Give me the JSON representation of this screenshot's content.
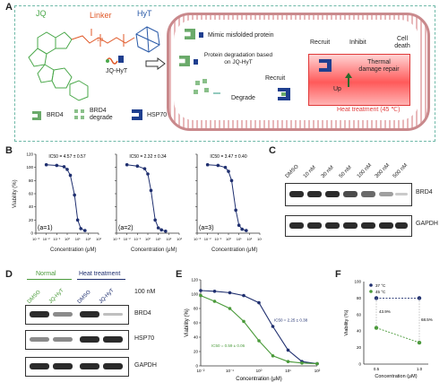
{
  "panel_labels": {
    "a": "A",
    "b": "B",
    "c": "C",
    "d": "D",
    "e": "E",
    "f": "F"
  },
  "panel_a": {
    "jq": "JQ",
    "linker": "Linker",
    "hyt": "HyT",
    "linker_repeat": "1-3",
    "jq_hyt": "JQ-HyT",
    "legend": {
      "brd4": "BRD4",
      "brd4_degrade": "BRD4 degrade",
      "hsp70": "HSP70"
    },
    "mimic": "Mimic misfolded protein",
    "protein_degradation": "Protein degradation based on JQ-HyT",
    "recruit_left": "Recruit",
    "degrade": "Degrade",
    "recruit_right": "Recruit",
    "inhibit": "Inhibit",
    "cell_death": "Cell death",
    "thermal": "Thermal damage repair",
    "up": "Up",
    "heat": "Heat treatment (45 ℃)",
    "colors": {
      "brd4": "#6aaa6a",
      "hsp70": "#1f3f8f",
      "heat": "#e03a3a",
      "cell": "#c9898c",
      "linker": "#e05a2a",
      "jq": "#4aa84a",
      "hyt": "#2a5aa8"
    }
  },
  "panel_b": {
    "ylabel": "Viability (%)",
    "xlabel": "Concentration (μM)",
    "xticks": [
      "10⁻³",
      "10⁻²",
      "10⁻¹",
      "10⁰",
      "10¹",
      "10²",
      "10³"
    ],
    "yticks": [
      "0",
      "20",
      "40",
      "60",
      "80",
      "100",
      "120"
    ],
    "plots": [
      {
        "ic50": "IC50 = 4.57 ± 0.57",
        "tag": "(a=1)"
      },
      {
        "ic50": "IC50 = 2.32 ± 0.34",
        "tag": "(a=2)"
      },
      {
        "ic50": "IC50 = 3.47 ± 0.40",
        "tag": "(a=3)"
      }
    ]
  },
  "panel_c": {
    "lanes": [
      "DMSO",
      "10 nM",
      "30 nM",
      "50 nM",
      "100 nM",
      "300 nM",
      "500 nM"
    ],
    "rows": [
      "BRD4",
      "GAPDH"
    ]
  },
  "panel_d": {
    "normal": "Normal",
    "heat": "Heat treatment",
    "lanes": [
      "DMSO",
      "JQ-HyT",
      "DMSO",
      "JQ-HyT"
    ],
    "dose": "100 nM",
    "rows": [
      "BRD4",
      "HSP70",
      "GAPDH"
    ]
  },
  "chart_data": [
    {
      "type": "line",
      "ylabel": "Viability (%)",
      "xlabel": "Concentration (μM)",
      "ylim": [
        0,
        120
      ],
      "series": [
        {
          "name": "IC50 = 4.57 ± 0.57",
          "x": [
            0.01,
            0.1,
            0.5,
            1,
            2,
            5,
            10,
            20,
            50
          ],
          "y": [
            104,
            103,
            101,
            97,
            88,
            58,
            20,
            7,
            4
          ]
        }
      ]
    },
    {
      "type": "line",
      "ylabel": "Viability (%)",
      "xlabel": "Concentration (μM)",
      "ylim": [
        0,
        120
      ],
      "series": [
        {
          "name": "IC50 = 2.32 ± 0.34",
          "x": [
            0.01,
            0.1,
            0.5,
            1,
            2,
            5,
            10,
            20,
            50
          ],
          "y": [
            104,
            102,
            98,
            90,
            65,
            20,
            8,
            5,
            3
          ]
        }
      ]
    },
    {
      "type": "line",
      "ylabel": "Viability (%)",
      "xlabel": "Concentration (μM)",
      "ylim": [
        0,
        120
      ],
      "series": [
        {
          "name": "IC50 = 3.47 ± 0.40",
          "x": [
            0.01,
            0.1,
            0.5,
            1,
            2,
            5,
            10,
            20,
            50
          ],
          "y": [
            104,
            103,
            100,
            94,
            80,
            35,
            12,
            6,
            4
          ]
        }
      ]
    },
    {
      "type": "line",
      "ylabel": "Viability (%)",
      "xlabel": "Concentration (μM)",
      "ylim": [
        0,
        120
      ],
      "series": [
        {
          "name": "IC50 = 2.25 ± 0.38",
          "color": "#1f2f6f",
          "x": [
            0.01,
            0.03,
            0.1,
            0.3,
            1,
            3,
            10,
            30,
            100
          ],
          "y": [
            105,
            104,
            102,
            98,
            88,
            55,
            22,
            6,
            3
          ]
        },
        {
          "name": "IC50 = 0.59 ± 0.06",
          "color": "#4a9a3a",
          "x": [
            0.01,
            0.03,
            0.1,
            0.3,
            1,
            3,
            10,
            30,
            100
          ],
          "y": [
            98,
            90,
            80,
            62,
            35,
            14,
            6,
            4,
            3
          ]
        }
      ]
    },
    {
      "type": "line",
      "ylabel": "Viability (%)",
      "xlabel": "Concentration (μM)",
      "ylim": [
        0,
        100
      ],
      "x": [
        "0.5",
        "1.0"
      ],
      "series": [
        {
          "name": "37 °C",
          "color": "#1f2f6f",
          "values": [
            80,
            80
          ]
        },
        {
          "name": "45 °C",
          "color": "#4a9a3a",
          "values": [
            44,
            26
          ]
        }
      ],
      "annotations": [
        "43.9%",
        "68.5%"
      ]
    }
  ]
}
